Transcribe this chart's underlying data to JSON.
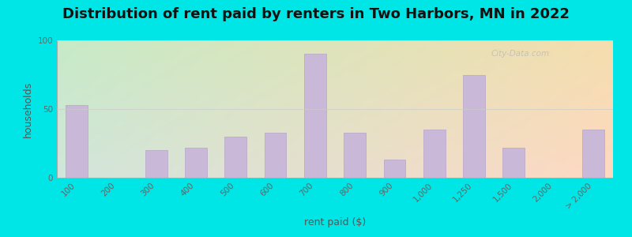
{
  "title": "Distribution of rent paid by renters in Two Harbors, MN in 2022",
  "xlabel": "rent paid ($)",
  "ylabel": "households",
  "bar_labels": [
    "100",
    "200",
    "300",
    "400",
    "500",
    "600",
    "700",
    "800",
    "900",
    "1,000",
    "1,250",
    "1,500",
    "2,000",
    "> 2,000"
  ],
  "bar_values": [
    53,
    0,
    20,
    22,
    30,
    33,
    90,
    33,
    13,
    35,
    75,
    22,
    0,
    35
  ],
  "bar_color": "#c9b8d8",
  "bar_edgecolor": "#b5a5c8",
  "background_outer": "#00e5e5",
  "bg_colors_left": "#c8e8c8",
  "bg_colors_right": "#f0f0d8",
  "title_fontsize": 13,
  "axis_label_fontsize": 9,
  "tick_fontsize": 7.5,
  "ylim": [
    0,
    100
  ],
  "yticks": [
    0,
    50,
    100
  ],
  "watermark_text": "City-Data.com"
}
